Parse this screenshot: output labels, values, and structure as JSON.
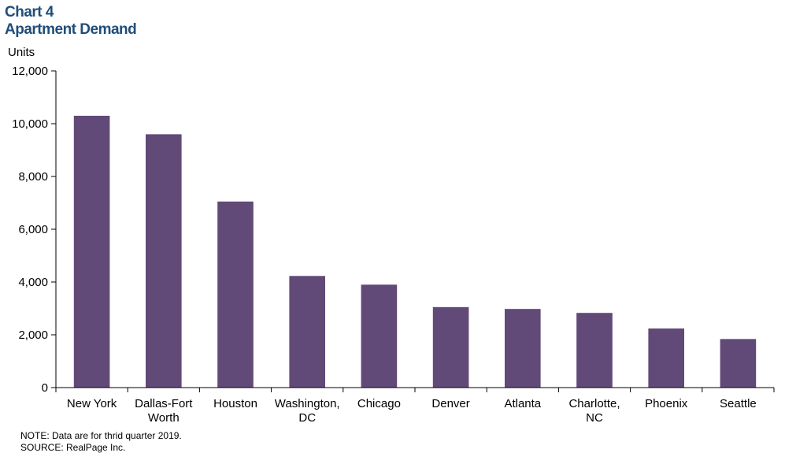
{
  "title": {
    "line1": "Chart 4",
    "line2": "Apartment Demand"
  },
  "notes": {
    "note": "NOTE: Data are for thrid quarter 2019.",
    "source": "SOURCE: RealPage Inc."
  },
  "chart_data": {
    "type": "bar",
    "title": "Chart 4 Apartment Demand",
    "ylabel": "Units",
    "xlabel": "",
    "categories": [
      [
        "New York"
      ],
      [
        "Dallas-Fort",
        "Worth"
      ],
      [
        "Houston"
      ],
      [
        "Washington,",
        "DC"
      ],
      [
        "Chicago"
      ],
      [
        "Denver"
      ],
      [
        "Atlanta"
      ],
      [
        "Charlotte,",
        "NC"
      ],
      [
        "Phoenix"
      ],
      [
        "Seattle"
      ]
    ],
    "values": [
      10300,
      9600,
      7050,
      4230,
      3900,
      3050,
      2980,
      2830,
      2240,
      1840
    ],
    "ylim": [
      0,
      12000
    ],
    "yticks": [
      0,
      2000,
      4000,
      6000,
      8000,
      10000,
      12000
    ],
    "ytick_labels": [
      "0",
      "2,000",
      "4,000",
      "6,000",
      "8,000",
      "10,000",
      "12,000"
    ],
    "grid": false,
    "colors": {
      "bar": "#614978",
      "axis": "#000000",
      "title": "#1f4e79"
    }
  }
}
